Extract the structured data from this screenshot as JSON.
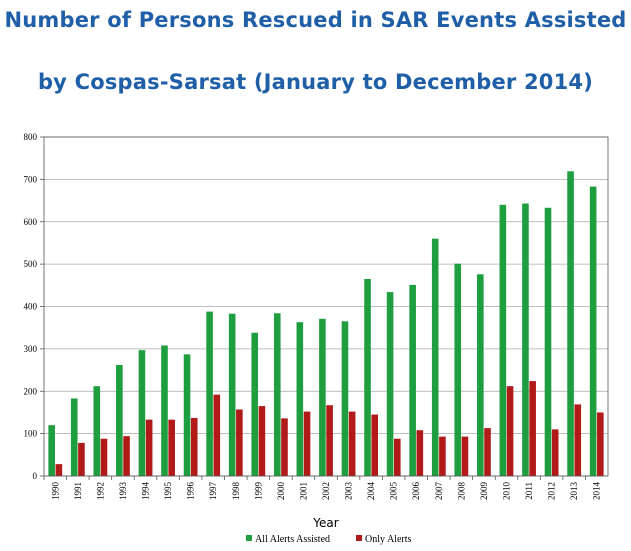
{
  "header": {
    "title_line1": "Number of Persons Rescued in SAR Events Assisted",
    "title_line2": "by Cospas-Sarsat (January to December 2014)"
  },
  "chart_data": {
    "type": "bar",
    "categories": [
      "1990",
      "1991",
      "1992",
      "1993",
      "1994",
      "1995",
      "1996",
      "1997",
      "1998",
      "1999",
      "2000",
      "2001",
      "2002",
      "2003",
      "2004",
      "2005",
      "2006",
      "2007",
      "2008",
      "2009",
      "2010",
      "2011",
      "2012",
      "2013",
      "2014"
    ],
    "series": [
      {
        "name": "All Alerts Assisted",
        "color": "#1e9e3e",
        "values": [
          120,
          183,
          212,
          262,
          297,
          308,
          287,
          388,
          383,
          338,
          384,
          363,
          371,
          365,
          465,
          434,
          451,
          560,
          501,
          476,
          640,
          643,
          633,
          719,
          683
        ]
      },
      {
        "name": "Only Alerts",
        "color": "#b21a1a",
        "values": [
          28,
          78,
          88,
          94,
          133,
          133,
          137,
          192,
          157,
          165,
          136,
          152,
          167,
          152,
          145,
          88,
          108,
          93,
          93,
          113,
          212,
          224,
          110,
          169,
          150
        ]
      }
    ],
    "xlabel": "Year",
    "ylabel": "",
    "ylim": [
      0,
      800
    ],
    "yticks": [
      0,
      100,
      200,
      300,
      400,
      500,
      600,
      700,
      800
    ],
    "grid": true,
    "legend": "bottom"
  }
}
